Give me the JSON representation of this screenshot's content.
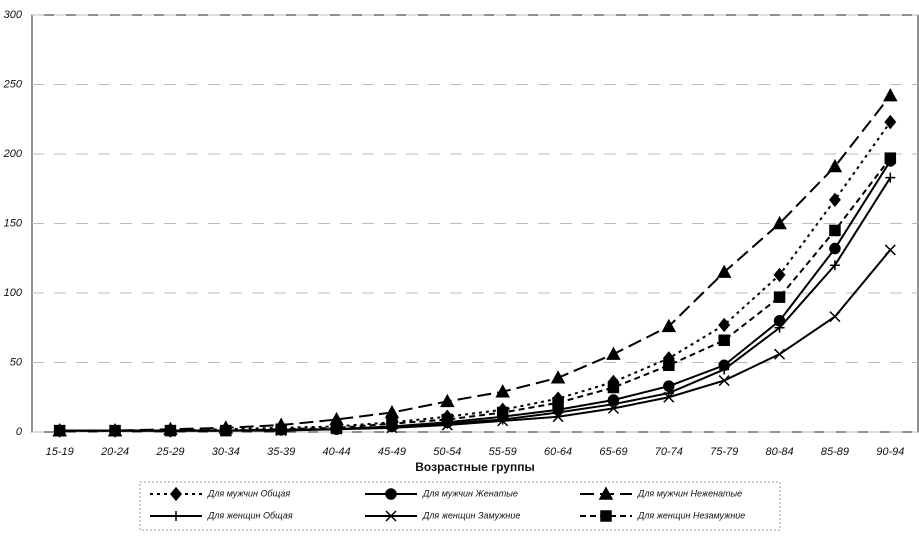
{
  "chart_data": {
    "type": "line",
    "x_label": "Возрастные группы",
    "categories": [
      "15-19",
      "20-24",
      "25-29",
      "30-34",
      "35-39",
      "40-44",
      "45-49",
      "50-54",
      "55-59",
      "60-64",
      "65-69",
      "70-74",
      "75-79",
      "80-84",
      "85-89",
      "90-94"
    ],
    "ylim": [
      0,
      300
    ],
    "yticks": [
      0,
      50,
      100,
      150,
      200,
      250,
      300
    ],
    "grid": true,
    "series": [
      {
        "name": "Для мужчин Общая",
        "color": "#000000",
        "marker": "diamond",
        "dash": "3,4",
        "values": [
          1,
          1,
          1,
          2,
          3,
          4,
          7,
          11,
          16,
          24,
          36,
          53,
          77,
          113,
          167,
          223
        ]
      },
      {
        "name": "Для мужчин Женатые",
        "color": "#000000",
        "marker": "circle",
        "dash": "",
        "values": [
          1,
          1,
          1,
          1,
          1.5,
          2,
          4,
          7,
          11,
          16,
          23,
          33,
          48,
          80,
          132,
          195
        ]
      },
      {
        "name": "Для мужчин Неженатые",
        "color": "#000000",
        "marker": "triangle",
        "dash": "14,6",
        "values": [
          1,
          1,
          2,
          3,
          5,
          9,
          14,
          22,
          29,
          39,
          56,
          76,
          115,
          150,
          191,
          242
        ]
      },
      {
        "name": "Для женщин Общая",
        "color": "#000000",
        "marker": "plus",
        "dash": "",
        "values": [
          1,
          1,
          1,
          1,
          1.5,
          2,
          4,
          6,
          9,
          14,
          20,
          28,
          45,
          75,
          120,
          183
        ]
      },
      {
        "name": "Для женщин Замужние",
        "color": "#000000",
        "marker": "x",
        "dash": "",
        "values": [
          1,
          1,
          1,
          1,
          1,
          2,
          3,
          5,
          8,
          11,
          17,
          25,
          37,
          56,
          83,
          131
        ]
      },
      {
        "name": "Для женщин Незамужние",
        "color": "#000000",
        "marker": "square",
        "dash": "6,4",
        "values": [
          1,
          1,
          1,
          1,
          2,
          3,
          6,
          9,
          14,
          21,
          32,
          48,
          66,
          97,
          145,
          197
        ]
      }
    ]
  }
}
